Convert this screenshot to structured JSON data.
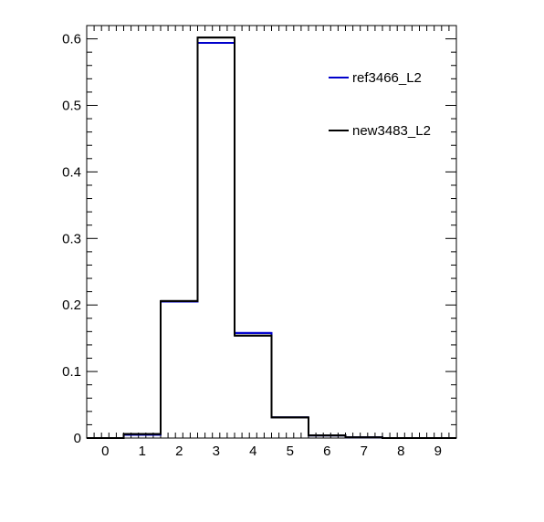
{
  "chart_data": {
    "type": "line",
    "subtype": "step-histogram",
    "x_bin_centers": [
      0,
      1,
      2,
      3,
      4,
      5,
      6,
      7,
      8,
      9
    ],
    "xlim": [
      -0.5,
      9.5
    ],
    "ylim": [
      0,
      0.62
    ],
    "x_tick_labels": [
      "0",
      "1",
      "2",
      "3",
      "4",
      "5",
      "6",
      "7",
      "8",
      "9"
    ],
    "y_tick_labels": [
      "0",
      "0.1",
      "0.2",
      "0.3",
      "0.4",
      "0.5",
      "0.6"
    ],
    "y_tick_values": [
      0,
      0.1,
      0.2,
      0.3,
      0.4,
      0.5,
      0.6
    ],
    "legend_position": "top-right",
    "grid": false,
    "series": [
      {
        "name": "ref3466_L2",
        "color": "#0000cc",
        "values": [
          0,
          0.005,
          0.205,
          0.594,
          0.158,
          0.031,
          0.004,
          0.001,
          0,
          0
        ]
      },
      {
        "name": "new3483_L2",
        "color": "#000000",
        "values": [
          0,
          0.006,
          0.206,
          0.602,
          0.154,
          0.031,
          0.004,
          0.001,
          0,
          0
        ]
      }
    ]
  }
}
